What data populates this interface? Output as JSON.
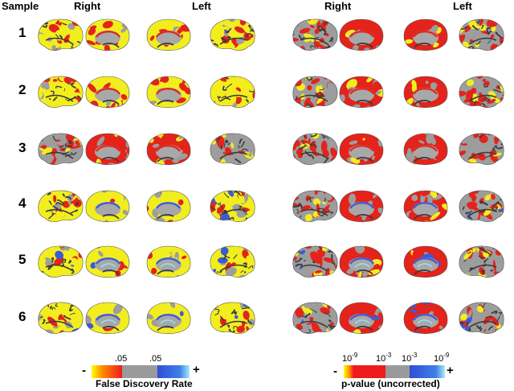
{
  "headers": {
    "sample": "Sample",
    "fdr_right": "Right",
    "fdr_left": "Left",
    "p_right": "Right",
    "p_left": "Left"
  },
  "rows": [
    "1",
    "2",
    "3",
    "4",
    "5",
    "6"
  ],
  "colorbars": {
    "fdr": {
      "title": "False Discovery Rate",
      "minus": "-",
      "plus": "+",
      "tick_left": ".05",
      "tick_right": ".05",
      "colors": [
        "#ffff00",
        "#ff7700",
        "#ee1c1c",
        "#9a9a9a",
        "#2f4fd6",
        "#7fd8ff"
      ]
    },
    "pvalue": {
      "title": "p-value (uncorrected)",
      "minus": "-",
      "plus": "+",
      "ticks": [
        {
          "base": "10",
          "exp": "-9"
        },
        {
          "base": "10",
          "exp": "-3"
        },
        {
          "base": "10",
          "exp": "-3"
        },
        {
          "base": "10",
          "exp": "-9"
        }
      ],
      "colors": [
        "#ffff00",
        "#ff7700",
        "#ee1c1c",
        "#9a9a9a",
        "#2f4fd6",
        "#7fd8ff"
      ]
    }
  },
  "colors": {
    "cortex_gray": "#9d9d9d",
    "sulcus_dark": "#3a3a3a",
    "medial_wall": "#a8a8a8",
    "yellow": "#f2ee1e",
    "red": "#e4231b",
    "blue": "#3a5bd9",
    "cyan": "#8fe6f2"
  }
}
